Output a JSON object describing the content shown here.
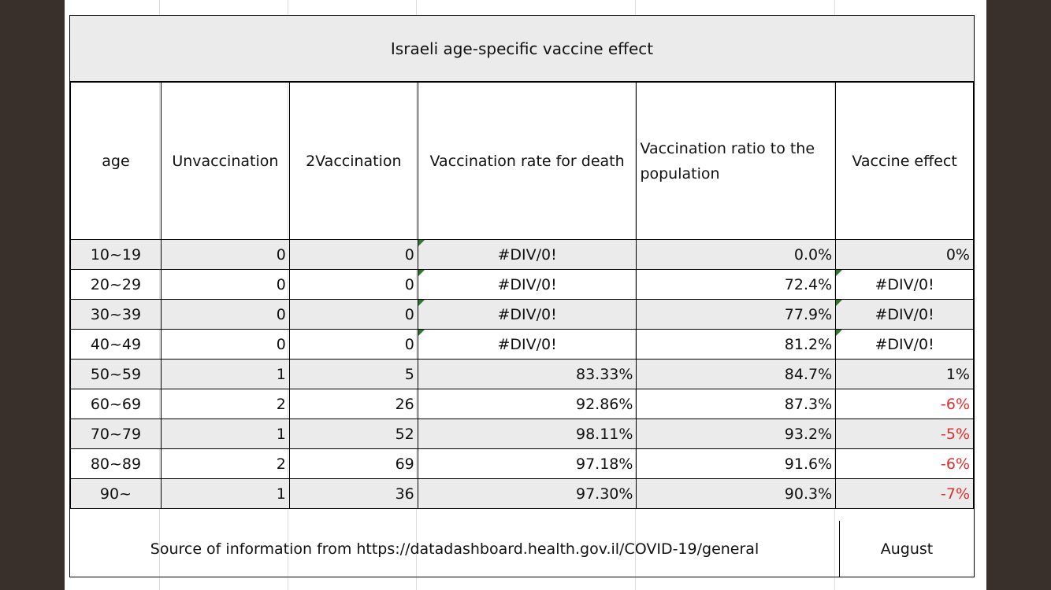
{
  "title": "Israeli age-specific vaccine effect",
  "headers": {
    "age": "age",
    "unvax": "Unvaccination",
    "vax2": "2Vaccination",
    "rate_death": "Vaccination rate for death",
    "ratio_pop": "Vaccination ratio to the population",
    "effect": "Vaccine effect"
  },
  "rows": [
    {
      "age": "10~19",
      "unvax": "0",
      "vax2": "0",
      "rate": "#DIV/0!",
      "ratio": "0.0%",
      "effect": "0%"
    },
    {
      "age": "20~29",
      "unvax": "0",
      "vax2": "0",
      "rate": "#DIV/0!",
      "ratio": "72.4%",
      "effect": "#DIV/0!"
    },
    {
      "age": "30~39",
      "unvax": "0",
      "vax2": "0",
      "rate": "#DIV/0!",
      "ratio": "77.9%",
      "effect": "#DIV/0!"
    },
    {
      "age": "40~49",
      "unvax": "0",
      "vax2": "0",
      "rate": "#DIV/0!",
      "ratio": "81.2%",
      "effect": "#DIV/0!"
    },
    {
      "age": "50~59",
      "unvax": "1",
      "vax2": "5",
      "rate": "83.33%",
      "ratio": "84.7%",
      "effect": "1%"
    },
    {
      "age": "60~69",
      "unvax": "2",
      "vax2": "26",
      "rate": "92.86%",
      "ratio": "87.3%",
      "effect": "-6%"
    },
    {
      "age": "70~79",
      "unvax": "1",
      "vax2": "52",
      "rate": "98.11%",
      "ratio": "93.2%",
      "effect": "-5%"
    },
    {
      "age": "80~89",
      "unvax": "2",
      "vax2": "69",
      "rate": "97.18%",
      "ratio": "91.6%",
      "effect": "-6%"
    },
    {
      "age": "90~",
      "unvax": "1",
      "vax2": "36",
      "rate": "97.30%",
      "ratio": "90.3%",
      "effect": "-7%"
    }
  ],
  "footer": {
    "source": "Source of information from https://datadashboard.health.gov.il/COVID-19/general",
    "month": "August"
  },
  "colors": {
    "background": "#3a302b",
    "header_fill": "#ebebeb",
    "negative": "#e03030",
    "comment_marker": "#2a7a2a"
  }
}
